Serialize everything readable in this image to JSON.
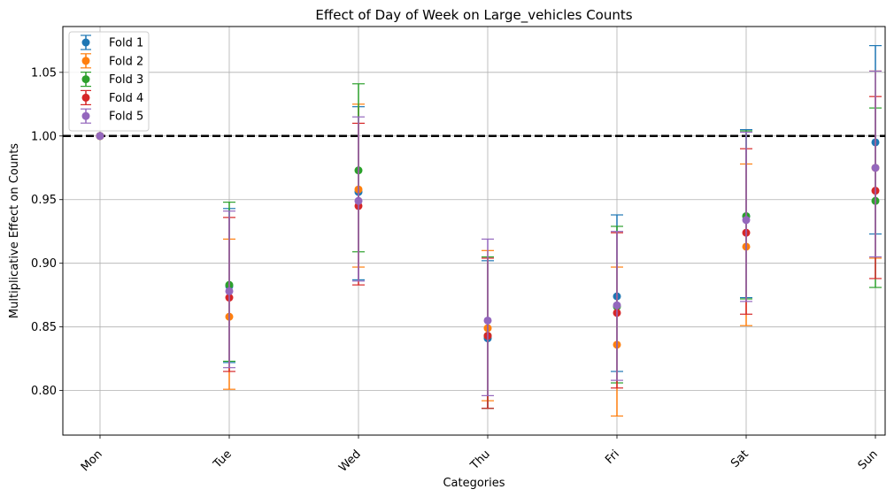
{
  "chart_data": {
    "type": "scatter",
    "title": "Effect of Day of Week on Large_vehicles Counts",
    "xlabel": "Categories",
    "ylabel": "Multiplicative Effect on Counts",
    "categories": [
      "Mon",
      "Tue",
      "Wed",
      "Thu",
      "Fri",
      "Sat",
      "Sun"
    ],
    "ylim": [
      0.765,
      1.086
    ],
    "yticks": [
      0.8,
      0.85,
      0.9,
      0.95,
      1.0,
      1.05
    ],
    "ytick_labels": [
      "0.80",
      "0.85",
      "0.90",
      "0.95",
      "1.00",
      "1.05"
    ],
    "reference_line": 1.0,
    "grid": true,
    "legend_position": "top-left",
    "series": [
      {
        "name": "Fold 1",
        "color": "#1f77b4",
        "values": [
          1.0,
          0.882,
          0.956,
          0.841,
          0.874,
          0.937,
          0.995
        ],
        "lower": [
          1.0,
          0.822,
          0.887,
          0.786,
          0.815,
          0.873,
          0.923
        ],
        "upper": [
          1.0,
          0.943,
          1.023,
          0.902,
          0.938,
          1.005,
          1.071
        ]
      },
      {
        "name": "Fold 2",
        "color": "#ff7f0e",
        "values": [
          1.0,
          0.858,
          0.958,
          0.849,
          0.836,
          0.913,
          0.975
        ],
        "lower": [
          1.0,
          0.801,
          0.897,
          0.792,
          0.78,
          0.851,
          0.904
        ],
        "upper": [
          1.0,
          0.919,
          1.025,
          0.91,
          0.897,
          0.978,
          1.051
        ]
      },
      {
        "name": "Fold 3",
        "color": "#2ca02c",
        "values": [
          1.0,
          0.883,
          0.973,
          0.843,
          0.866,
          0.937,
          0.949
        ],
        "lower": [
          1.0,
          0.823,
          0.909,
          0.786,
          0.806,
          0.872,
          0.881
        ],
        "upper": [
          1.0,
          0.948,
          1.041,
          0.905,
          0.929,
          1.004,
          1.022
        ]
      },
      {
        "name": "Fold 4",
        "color": "#d62728",
        "values": [
          1.0,
          0.873,
          0.945,
          0.843,
          0.861,
          0.924,
          0.957
        ],
        "lower": [
          1.0,
          0.815,
          0.883,
          0.786,
          0.802,
          0.86,
          0.888
        ],
        "upper": [
          1.0,
          0.936,
          1.01,
          0.904,
          0.924,
          0.99,
          1.031
        ]
      },
      {
        "name": "Fold 5",
        "color": "#9467bd",
        "values": [
          1.0,
          0.878,
          0.949,
          0.855,
          0.867,
          0.934,
          0.975
        ],
        "lower": [
          1.0,
          0.818,
          0.886,
          0.796,
          0.808,
          0.87,
          0.905
        ],
        "upper": [
          1.0,
          0.941,
          1.015,
          0.919,
          0.925,
          1.003,
          1.051
        ]
      }
    ]
  }
}
